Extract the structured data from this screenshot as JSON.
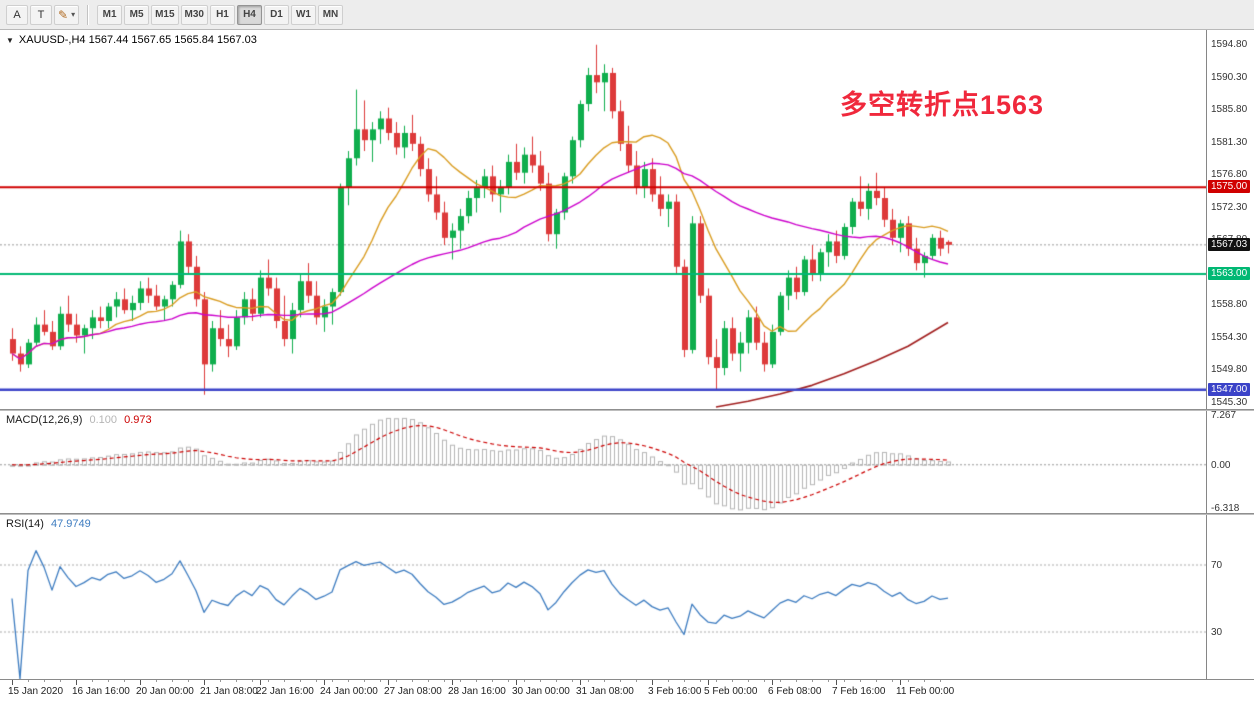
{
  "toolbar": {
    "tool_a": "A",
    "tool_t": "T",
    "pencil_icon": "✎",
    "caret_icon": "▾",
    "timeframes": [
      "M1",
      "M5",
      "M15",
      "M30",
      "H1",
      "H4",
      "D1",
      "W1",
      "MN"
    ],
    "active_timeframe": "H4"
  },
  "chart": {
    "title": "XAUUSD-,H4 1567.44 1567.65 1565.84 1567.03",
    "collapse_icon": "▼",
    "annotation": {
      "text": "多空转折点1563",
      "color": "#f0283c"
    },
    "bid_price": 1567.03,
    "colors": {
      "bull": "#0fae4d",
      "bear": "#dd3a3a",
      "ma_fast": "#d99c20",
      "ma_slow": "#cc00cc",
      "ma_long": "#a11e1e",
      "bid_line": "#9a9a9a"
    },
    "hlines": [
      {
        "price": 1575.0,
        "color": "#d00000",
        "width": 2
      },
      {
        "price": 1563.0,
        "color": "#00b873",
        "width": 2
      },
      {
        "price": 1547.0,
        "color": "#3b43c8",
        "width": 2.5
      }
    ],
    "price_axis": {
      "labels": [
        "1594.80",
        "1590.30",
        "1585.80",
        "1581.30",
        "1576.80",
        "1572.30",
        "1567.80",
        "1563.30",
        "1558.80",
        "1554.30",
        "1549.80",
        "1545.30"
      ],
      "badges": [
        {
          "label": "1575.00",
          "price": 1575.0,
          "color": "#d00000"
        },
        {
          "label": "1567.03",
          "price": 1567.03,
          "color": "#111111"
        },
        {
          "label": "1563.00",
          "price": 1563.0,
          "color": "#00b873"
        },
        {
          "label": "1547.00",
          "price": 1547.0,
          "color": "#3b43c8"
        }
      ]
    }
  },
  "macd_panel": {
    "title": "MACD(12,26,9)",
    "main_value": "0.100",
    "signal_value": "0.973",
    "axis_labels": [
      {
        "value": 7.267,
        "label": "7.267"
      },
      {
        "value": 0.0,
        "label": "0.00"
      },
      {
        "value": -6.318,
        "label": "-6.318"
      }
    ],
    "range": {
      "top": 7.267,
      "bottom": -6.318
    },
    "hist_color": "#b5b5b5",
    "signal_color": "#cc0000"
  },
  "rsi_panel": {
    "title": "RSI(14)",
    "value": "47.9749",
    "levels": [
      70,
      30
    ],
    "axis_labels": [
      {
        "value": 70,
        "label": "70"
      },
      {
        "value": 30,
        "label": "30"
      }
    ],
    "line_color": "#3d7cc0"
  },
  "chart_data": {
    "type": "candlestick",
    "symbol": "XAUUSD-",
    "timeframe": "H4",
    "y_range": {
      "top": 1594.8,
      "bottom": 1545.3
    },
    "x_labels": [
      {
        "index": 0,
        "label": "15 Jan 2020"
      },
      {
        "index": 8,
        "label": "16 Jan 16:00"
      },
      {
        "index": 16,
        "label": "20 Jan 00:00"
      },
      {
        "index": 24,
        "label": "21 Jan 08:00"
      },
      {
        "index": 31,
        "label": "22 Jan 16:00"
      },
      {
        "index": 39,
        "label": "24 Jan 00:00"
      },
      {
        "index": 47,
        "label": "27 Jan 08:00"
      },
      {
        "index": 55,
        "label": "28 Jan 16:00"
      },
      {
        "index": 63,
        "label": "30 Jan 00:00"
      },
      {
        "index": 71,
        "label": "31 Jan 08:00"
      },
      {
        "index": 80,
        "label": "3 Feb 16:00"
      },
      {
        "index": 87,
        "label": "5 Feb 00:00"
      },
      {
        "index": 95,
        "label": "6 Feb 08:00"
      },
      {
        "index": 103,
        "label": "7 Feb 16:00"
      },
      {
        "index": 111,
        "label": "11 Feb 00:00"
      }
    ],
    "moving_averages": [
      {
        "name": "ma-fast",
        "type": "sma",
        "period": 12,
        "color_key": "ma_fast"
      },
      {
        "name": "ma-slow",
        "type": "sma",
        "period": 40,
        "color_key": "ma_slow"
      }
    ],
    "ma_long_points": [
      [
        88,
        1544.6
      ],
      [
        92,
        1545.4
      ],
      [
        96,
        1546.4
      ],
      [
        100,
        1547.6
      ],
      [
        104,
        1549.2
      ],
      [
        108,
        1551.0
      ],
      [
        112,
        1553.0
      ],
      [
        117,
        1556.3
      ]
    ],
    "indicators": {
      "macd": {
        "fast": 12,
        "slow": 26,
        "signal": 9
      },
      "rsi": {
        "period": 14
      }
    },
    "ohlc": [
      [
        1554.0,
        1555.5,
        1551.0,
        1552.0
      ],
      [
        1552.0,
        1553.0,
        1549.5,
        1550.5
      ],
      [
        1550.5,
        1554.0,
        1550.0,
        1553.5
      ],
      [
        1553.5,
        1557.0,
        1553.0,
        1556.0
      ],
      [
        1556.0,
        1558.0,
        1554.5,
        1555.0
      ],
      [
        1555.0,
        1556.5,
        1552.5,
        1553.0
      ],
      [
        1553.0,
        1558.5,
        1552.5,
        1557.5
      ],
      [
        1557.5,
        1560.0,
        1555.0,
        1556.0
      ],
      [
        1556.0,
        1557.5,
        1553.5,
        1554.5
      ],
      [
        1554.5,
        1556.0,
        1552.0,
        1555.5
      ],
      [
        1555.5,
        1558.0,
        1554.0,
        1557.0
      ],
      [
        1557.0,
        1558.5,
        1555.5,
        1556.5
      ],
      [
        1556.5,
        1559.0,
        1555.5,
        1558.5
      ],
      [
        1558.5,
        1560.5,
        1557.0,
        1559.5
      ],
      [
        1559.5,
        1561.0,
        1557.5,
        1558.0
      ],
      [
        1558.0,
        1560.0,
        1556.5,
        1559.0
      ],
      [
        1559.0,
        1562.0,
        1558.0,
        1561.0
      ],
      [
        1561.0,
        1562.5,
        1559.0,
        1560.0
      ],
      [
        1560.0,
        1561.5,
        1558.0,
        1558.5
      ],
      [
        1558.5,
        1560.0,
        1556.5,
        1559.5
      ],
      [
        1559.5,
        1562.0,
        1558.5,
        1561.5
      ],
      [
        1561.5,
        1569.0,
        1561.0,
        1567.5
      ],
      [
        1567.5,
        1568.5,
        1563.0,
        1564.0
      ],
      [
        1564.0,
        1565.5,
        1558.5,
        1559.5
      ],
      [
        1559.5,
        1560.5,
        1546.3,
        1550.5
      ],
      [
        1550.5,
        1556.5,
        1549.5,
        1555.5
      ],
      [
        1555.5,
        1558.0,
        1553.0,
        1554.0
      ],
      [
        1554.0,
        1556.0,
        1551.5,
        1553.0
      ],
      [
        1553.0,
        1558.0,
        1552.5,
        1557.0
      ],
      [
        1557.0,
        1560.5,
        1556.0,
        1559.5
      ],
      [
        1559.5,
        1561.0,
        1556.5,
        1557.5
      ],
      [
        1557.5,
        1563.5,
        1557.0,
        1562.5
      ],
      [
        1562.5,
        1565.0,
        1560.0,
        1561.0
      ],
      [
        1561.0,
        1562.5,
        1555.5,
        1556.5
      ],
      [
        1556.5,
        1560.0,
        1553.0,
        1554.0
      ],
      [
        1554.0,
        1559.0,
        1552.0,
        1558.0
      ],
      [
        1558.0,
        1563.0,
        1557.0,
        1562.0
      ],
      [
        1562.0,
        1564.5,
        1559.0,
        1560.0
      ],
      [
        1560.0,
        1562.0,
        1556.0,
        1557.0
      ],
      [
        1557.0,
        1559.5,
        1555.0,
        1558.5
      ],
      [
        1558.5,
        1561.0,
        1556.0,
        1560.5
      ],
      [
        1560.5,
        1575.5,
        1560.0,
        1575.0
      ],
      [
        1575.0,
        1580.0,
        1572.5,
        1579.0
      ],
      [
        1579.0,
        1588.5,
        1578.0,
        1583.0
      ],
      [
        1583.0,
        1587.0,
        1580.0,
        1581.5
      ],
      [
        1581.5,
        1584.0,
        1578.5,
        1583.0
      ],
      [
        1583.0,
        1585.5,
        1581.0,
        1584.5
      ],
      [
        1584.5,
        1586.0,
        1581.5,
        1582.5
      ],
      [
        1582.5,
        1584.0,
        1579.5,
        1580.5
      ],
      [
        1580.5,
        1583.5,
        1579.0,
        1582.5
      ],
      [
        1582.5,
        1585.0,
        1580.0,
        1581.0
      ],
      [
        1581.0,
        1582.0,
        1576.5,
        1577.5
      ],
      [
        1577.5,
        1579.0,
        1573.0,
        1574.0
      ],
      [
        1574.0,
        1576.5,
        1570.5,
        1571.5
      ],
      [
        1571.5,
        1573.0,
        1567.0,
        1568.0
      ],
      [
        1568.0,
        1570.0,
        1565.0,
        1569.0
      ],
      [
        1569.0,
        1572.0,
        1566.5,
        1571.0
      ],
      [
        1571.0,
        1574.5,
        1570.0,
        1573.5
      ],
      [
        1573.5,
        1576.0,
        1571.5,
        1575.0
      ],
      [
        1575.0,
        1577.5,
        1573.5,
        1576.5
      ],
      [
        1576.5,
        1578.0,
        1573.0,
        1574.0
      ],
      [
        1574.0,
        1576.0,
        1571.5,
        1575.0
      ],
      [
        1575.0,
        1579.5,
        1574.0,
        1578.5
      ],
      [
        1578.5,
        1581.0,
        1576.0,
        1577.0
      ],
      [
        1577.0,
        1580.5,
        1575.5,
        1579.5
      ],
      [
        1579.5,
        1582.0,
        1577.0,
        1578.0
      ],
      [
        1578.0,
        1580.0,
        1574.5,
        1575.5
      ],
      [
        1575.5,
        1577.0,
        1567.5,
        1568.5
      ],
      [
        1568.5,
        1572.0,
        1566.5,
        1571.5
      ],
      [
        1571.5,
        1577.0,
        1570.5,
        1576.5
      ],
      [
        1576.5,
        1582.0,
        1575.5,
        1581.5
      ],
      [
        1581.5,
        1587.0,
        1580.5,
        1586.5
      ],
      [
        1586.5,
        1591.5,
        1585.5,
        1590.5
      ],
      [
        1590.5,
        1594.7,
        1588.0,
        1589.5
      ],
      [
        1589.5,
        1592.0,
        1585.5,
        1590.8
      ],
      [
        1590.8,
        1591.5,
        1584.5,
        1585.5
      ],
      [
        1585.5,
        1587.0,
        1580.0,
        1581.0
      ],
      [
        1581.0,
        1583.5,
        1577.0,
        1578.0
      ],
      [
        1578.0,
        1580.0,
        1574.0,
        1575.0
      ],
      [
        1575.0,
        1578.5,
        1573.5,
        1577.5
      ],
      [
        1577.5,
        1579.0,
        1573.0,
        1574.0
      ],
      [
        1574.0,
        1576.5,
        1571.0,
        1572.0
      ],
      [
        1572.0,
        1574.0,
        1569.5,
        1573.0
      ],
      [
        1573.0,
        1574.0,
        1563.0,
        1564.0
      ],
      [
        1564.0,
        1565.0,
        1551.5,
        1552.5
      ],
      [
        1552.5,
        1571.0,
        1552.0,
        1570.0
      ],
      [
        1570.0,
        1571.0,
        1559.0,
        1560.0
      ],
      [
        1560.0,
        1561.0,
        1550.5,
        1551.5
      ],
      [
        1551.5,
        1554.0,
        1547.0,
        1550.0
      ],
      [
        1550.0,
        1556.5,
        1549.0,
        1555.5
      ],
      [
        1555.5,
        1557.0,
        1551.0,
        1552.0
      ],
      [
        1552.0,
        1555.0,
        1549.5,
        1553.5
      ],
      [
        1553.5,
        1558.0,
        1552.0,
        1557.0
      ],
      [
        1557.0,
        1558.5,
        1552.5,
        1553.5
      ],
      [
        1553.5,
        1555.0,
        1549.5,
        1550.5
      ],
      [
        1550.5,
        1556.0,
        1550.0,
        1555.0
      ],
      [
        1555.0,
        1560.5,
        1554.5,
        1560.0
      ],
      [
        1560.0,
        1563.5,
        1558.0,
        1562.5
      ],
      [
        1562.5,
        1564.0,
        1559.5,
        1560.5
      ],
      [
        1560.5,
        1565.5,
        1560.0,
        1565.0
      ],
      [
        1565.0,
        1567.0,
        1562.0,
        1563.0
      ],
      [
        1563.0,
        1566.5,
        1562.0,
        1566.0
      ],
      [
        1566.0,
        1568.5,
        1564.0,
        1567.5
      ],
      [
        1567.5,
        1569.0,
        1564.5,
        1565.5
      ],
      [
        1565.5,
        1570.0,
        1565.0,
        1569.5
      ],
      [
        1569.5,
        1573.5,
        1568.5,
        1573.0
      ],
      [
        1573.0,
        1576.5,
        1571.0,
        1572.0
      ],
      [
        1572.0,
        1575.5,
        1570.5,
        1574.5
      ],
      [
        1574.5,
        1577.0,
        1572.5,
        1573.5
      ],
      [
        1573.5,
        1575.0,
        1569.5,
        1570.5
      ],
      [
        1570.5,
        1572.0,
        1567.0,
        1568.0
      ],
      [
        1568.0,
        1570.5,
        1566.0,
        1570.0
      ],
      [
        1570.0,
        1571.0,
        1565.5,
        1566.5
      ],
      [
        1566.5,
        1568.0,
        1563.5,
        1564.5
      ],
      [
        1564.5,
        1566.0,
        1562.5,
        1565.5
      ],
      [
        1565.5,
        1568.5,
        1565.0,
        1568.0
      ],
      [
        1568.0,
        1569.0,
        1565.5,
        1566.5
      ],
      [
        1567.44,
        1567.65,
        1565.84,
        1567.03
      ]
    ]
  }
}
